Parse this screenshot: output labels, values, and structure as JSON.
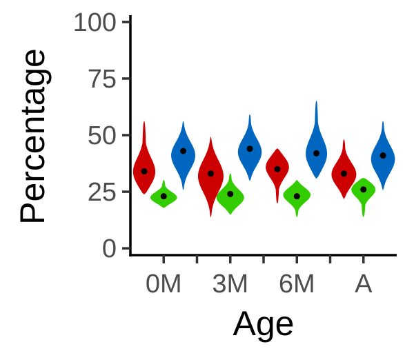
{
  "chart_data": {
    "type": "violin",
    "title": "",
    "xlabel": "Age",
    "ylabel": "Percentage",
    "ylim": [
      -3,
      103
    ],
    "yticks": [
      "0",
      "25",
      "50",
      "75",
      "100"
    ],
    "ytick_values": [
      0,
      25,
      50,
      75,
      100
    ],
    "categories": [
      "0M",
      "3M",
      "6M",
      "A"
    ],
    "grid": false,
    "legend": "none",
    "series": [
      {
        "color": "#cc0000",
        "values": [
          {
            "min": 24,
            "max": 56,
            "mean": 34,
            "mode": 32,
            "wmax": 0.9
          },
          {
            "min": 14,
            "max": 49,
            "mean": 33,
            "mode": 32,
            "wmax": 0.9
          },
          {
            "min": 20,
            "max": 44,
            "mean": 35,
            "mode": 37,
            "wmax": 0.9
          },
          {
            "min": 22,
            "max": 48,
            "mean": 33,
            "mode": 32,
            "wmax": 0.9
          }
        ]
      },
      {
        "color": "#33cc00",
        "values": [
          {
            "min": 18,
            "max": 30,
            "mean": 23,
            "mode": 22,
            "wmax": 1.0
          },
          {
            "min": 15,
            "max": 33,
            "mean": 24,
            "mode": 22,
            "wmax": 1.0
          },
          {
            "min": 14,
            "max": 30,
            "mean": 23,
            "mode": 24,
            "wmax": 1.0
          },
          {
            "min": 14,
            "max": 31,
            "mean": 26,
            "mode": 27,
            "wmax": 1.0
          }
        ]
      },
      {
        "color": "#0066bf",
        "values": [
          {
            "min": 26,
            "max": 56,
            "mean": 43,
            "mode": 41,
            "wmax": 0.85
          },
          {
            "min": 30,
            "max": 59,
            "mean": 44,
            "mode": 42,
            "wmax": 0.85
          },
          {
            "min": 31,
            "max": 65,
            "mean": 42,
            "mode": 40,
            "wmax": 0.85
          },
          {
            "min": 26,
            "max": 56,
            "mean": 41,
            "mode": 39,
            "wmax": 0.85
          }
        ]
      }
    ]
  }
}
